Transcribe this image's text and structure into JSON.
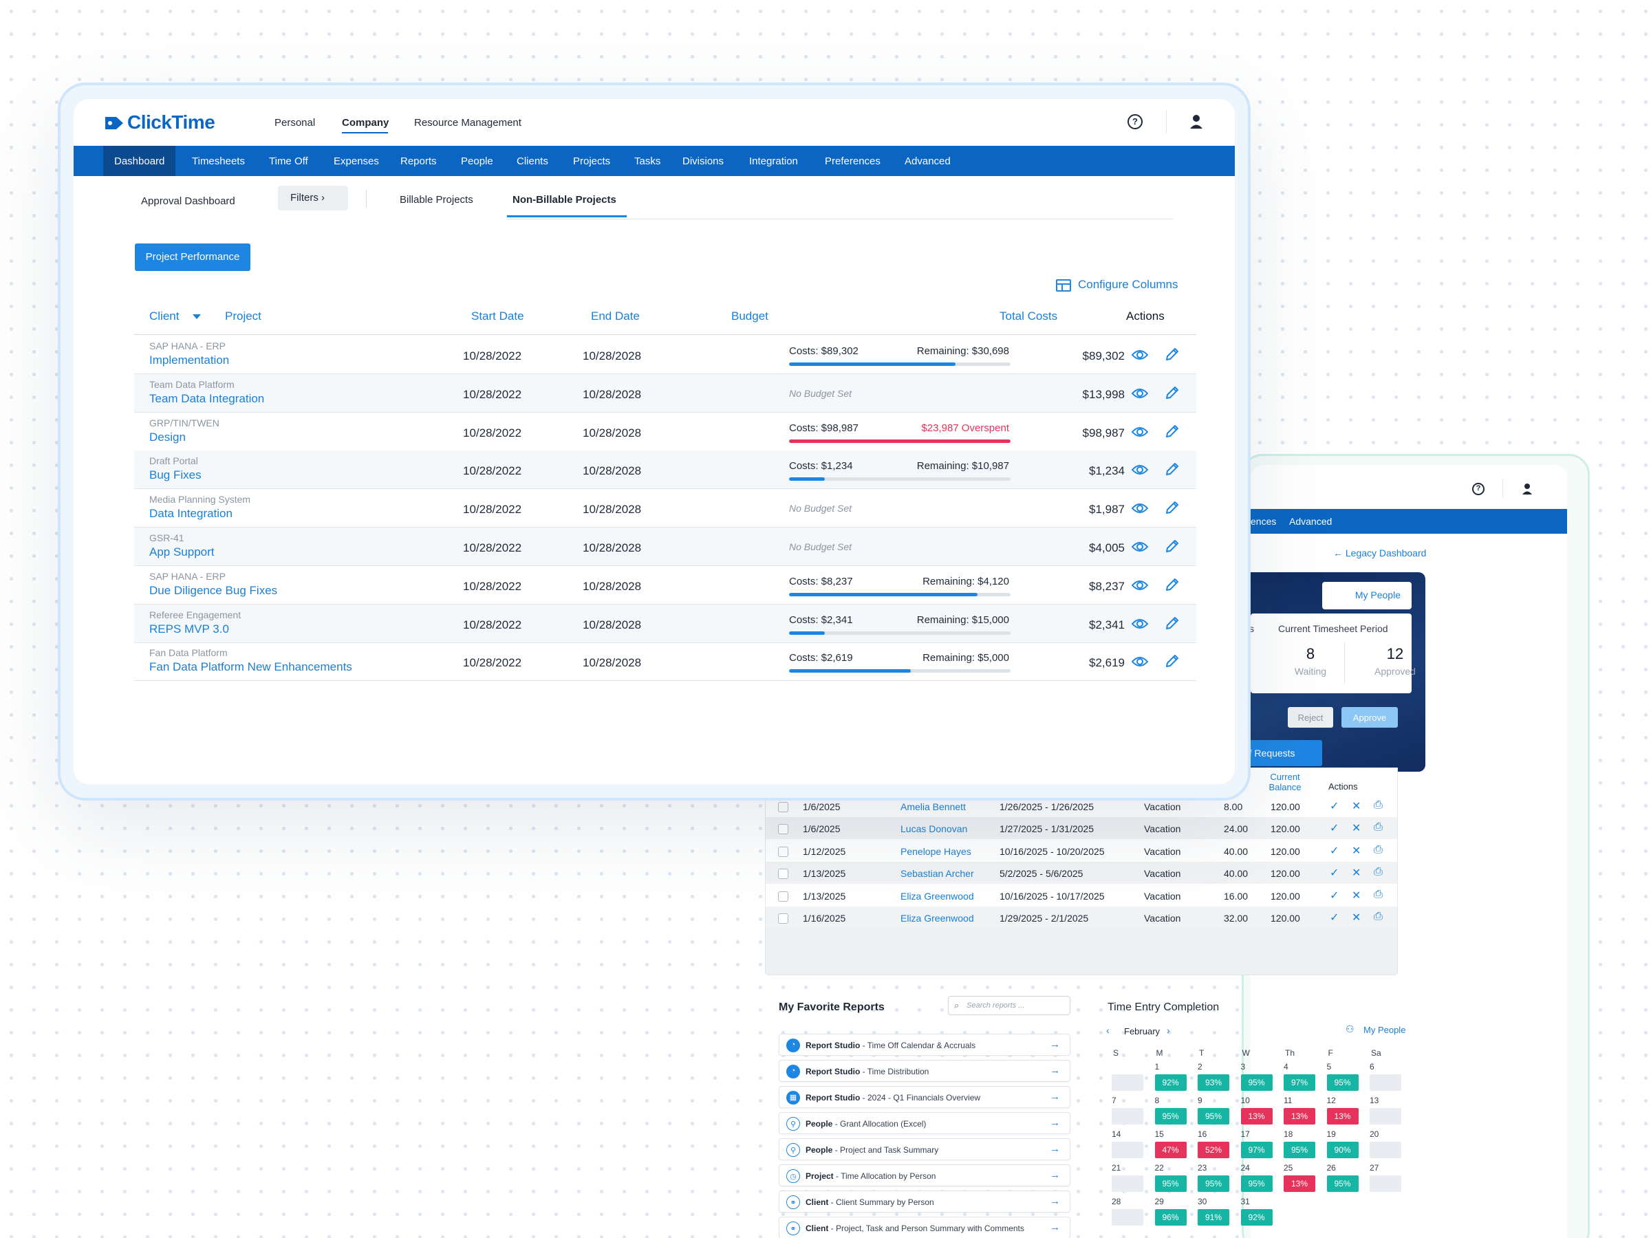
{
  "app": {
    "logo_text": "ClickTime",
    "top_nav": [
      "Personal",
      "Company",
      "Resource Management"
    ],
    "main_nav": [
      "Dashboard",
      "Timesheets",
      "Time Off",
      "Expenses",
      "Reports",
      "People",
      "Clients",
      "Projects",
      "Tasks",
      "Divisions",
      "Integration",
      "Preferences",
      "Advanced"
    ]
  },
  "subnav": {
    "approval": "Approval Dashboard",
    "filters": "Filters",
    "tab_billable": "Billable Projects",
    "tab_nonbillable": "Non-Billable Projects"
  },
  "actions": {
    "project_performance": "Project Performance",
    "configure_columns": "Configure Columns"
  },
  "table": {
    "headers": {
      "client": "Client",
      "project": "Project",
      "start_date": "Start Date",
      "end_date": "End Date",
      "budget": "Budget",
      "total_costs": "Total Costs",
      "actions": "Actions"
    },
    "rows": [
      {
        "client": "SAP HANA - ERP",
        "project": "Implementation",
        "start": "10/28/2022",
        "end": "10/28/2028",
        "costs": "Costs: $89,302",
        "remaining": "Remaining: $30,698",
        "progress": 0.75,
        "over": false,
        "total": "$89,302"
      },
      {
        "client": "Team Data Platform",
        "project": "Team Data Integration",
        "start": "10/28/2022",
        "end": "10/28/2028",
        "no_budget": "No Budget Set",
        "total": "$13,998"
      },
      {
        "client": "GRP/TIN/TWEN",
        "project": "Design",
        "start": "10/28/2022",
        "end": "10/28/2028",
        "costs": "Costs: $98,987",
        "remaining": "$23,987 Overspent",
        "progress": 1.0,
        "over": true,
        "total": "$98,987"
      },
      {
        "client": "Draft Portal",
        "project": "Bug Fixes",
        "start": "10/28/2022",
        "end": "10/28/2028",
        "costs": "Costs: $1,234",
        "remaining": "Remaining: $10,987",
        "progress": 0.16,
        "over": false,
        "total": "$1,234"
      },
      {
        "client": "Media Planning System",
        "project": "Data Integration",
        "start": "10/28/2022",
        "end": "10/28/2028",
        "no_budget": "No Budget Set",
        "total": "$1,987"
      },
      {
        "client": "GSR-41",
        "project": "App Support",
        "start": "10/28/2022",
        "end": "10/28/2028",
        "no_budget": "No Budget Set",
        "total": "$4,005"
      },
      {
        "client": "SAP HANA - ERP",
        "project": "Due Diligence Bug Fixes",
        "start": "10/28/2022",
        "end": "10/28/2028",
        "costs": "Costs: $8,237",
        "remaining": "Remaining: $4,120",
        "progress": 0.85,
        "over": false,
        "total": "$8,237"
      },
      {
        "client": "Referee Engagement",
        "project": "REPS MVP 3.0",
        "start": "10/28/2022",
        "end": "10/28/2028",
        "costs": "Costs: $2,341",
        "remaining": "Remaining: $15,000",
        "progress": 0.16,
        "over": false,
        "total": "$2,341"
      },
      {
        "client": "Fan Data Platform",
        "project": "Fan Data Platform New Enhancements",
        "start": "10/28/2022",
        "end": "10/28/2028",
        "costs": "Costs: $2,619",
        "remaining": "Remaining: $5,000",
        "progress": 0.55,
        "over": false,
        "total": "$2,619"
      }
    ]
  },
  "back_panel": {
    "nav_fragment": "ences",
    "nav_advanced": "Advanced",
    "legacy_link": "Legacy Dashboard",
    "my_people": "My People",
    "period_title": "Current Timesheet Period",
    "period_left_fragment": "s",
    "waiting_count": "8",
    "waiting_label": "Waiting",
    "approved_count": "12",
    "approved_label": "Approved",
    "reject": "Reject",
    "approve": "Approve",
    "requests_tab": "ff Requests",
    "table_head_balance": "Current Balance",
    "table_head_actions": "Actions",
    "time_off_rows": [
      {
        "date": "1/6/2025",
        "name": "Amelia Bennett",
        "range": "1/26/2025 - 1/26/2025",
        "type": "Vacation",
        "hours": "8.00",
        "balance": "120.00"
      },
      {
        "date": "1/6/2025",
        "name": "Lucas Donovan",
        "range": "1/27/2025 - 1/31/2025",
        "type": "Vacation",
        "hours": "24.00",
        "balance": "120.00"
      },
      {
        "date": "1/12/2025",
        "name": "Penelope Hayes",
        "range": "10/16/2025 - 10/20/2025",
        "type": "Vacation",
        "hours": "40.00",
        "balance": "120.00"
      },
      {
        "date": "1/13/2025",
        "name": "Sebastian Archer",
        "range": "5/2/2025 - 5/6/2025",
        "type": "Vacation",
        "hours": "40.00",
        "balance": "120.00"
      },
      {
        "date": "1/13/2025",
        "name": "Eliza Greenwood",
        "range": "10/16/2025 - 10/17/2025",
        "type": "Vacation",
        "hours": "16.00",
        "balance": "120.00"
      },
      {
        "date": "1/16/2025",
        "name": "Eliza Greenwood",
        "range": "1/29/2025 - 2/1/2025",
        "type": "Vacation",
        "hours": "32.00",
        "balance": "120.00"
      }
    ],
    "reports_title": "My Favorite Reports",
    "reports_search_placeholder": "Search reports ...",
    "reports": [
      {
        "source": "Report Studio",
        "name": " - Time Off Calendar & Accruals",
        "icon": "report-studio"
      },
      {
        "source": "Report Studio",
        "name": " - Time Distribution",
        "icon": "report-studio"
      },
      {
        "source": "Report Studio",
        "name": " - 2024 - Q1 Financials Overview",
        "icon": "spreadsheet"
      },
      {
        "source": "People",
        "name": " - Grant Allocation (Excel)",
        "icon": "person"
      },
      {
        "source": "People",
        "name": " - Project and Task Summary",
        "icon": "person"
      },
      {
        "source": "Project",
        "name": " - Time Allocation by Person",
        "icon": "project"
      },
      {
        "source": "Client",
        "name": " - Client Summary by Person",
        "icon": "handshake"
      },
      {
        "source": "Client",
        "name": " - Project, Task and Person Summary with Comments",
        "icon": "handshake"
      }
    ],
    "calendar": {
      "title": "Time Entry Completion",
      "month": "February",
      "my_people": "My People",
      "days_of_week": [
        "S",
        "M",
        "T",
        "W",
        "Th",
        "F",
        "Sa"
      ],
      "weeks": [
        [
          {
            "d": "",
            "p": null
          },
          {
            "d": "1",
            "p": "92%"
          },
          {
            "d": "2",
            "p": "93%"
          },
          {
            "d": "3",
            "p": "95%"
          },
          {
            "d": "4",
            "p": "97%"
          },
          {
            "d": "5",
            "p": "95%"
          },
          {
            "d": "6",
            "p": null
          }
        ],
        [
          {
            "d": "7",
            "p": null
          },
          {
            "d": "8",
            "p": "95%"
          },
          {
            "d": "9",
            "p": "95%"
          },
          {
            "d": "10",
            "p": "13%"
          },
          {
            "d": "11",
            "p": "13%"
          },
          {
            "d": "12",
            "p": "13%"
          },
          {
            "d": "13",
            "p": null
          }
        ],
        [
          {
            "d": "14",
            "p": null
          },
          {
            "d": "15",
            "p": "47%"
          },
          {
            "d": "16",
            "p": "52%"
          },
          {
            "d": "17",
            "p": "97%"
          },
          {
            "d": "18",
            "p": "95%"
          },
          {
            "d": "19",
            "p": "90%"
          },
          {
            "d": "20",
            "p": null
          }
        ],
        [
          {
            "d": "21",
            "p": null
          },
          {
            "d": "22",
            "p": "95%"
          },
          {
            "d": "23",
            "p": "95%"
          },
          {
            "d": "24",
            "p": "95%"
          },
          {
            "d": "25",
            "p": "13%"
          },
          {
            "d": "26",
            "p": "95%"
          },
          {
            "d": "27",
            "p": null
          }
        ],
        [
          {
            "d": "28",
            "p": null
          },
          {
            "d": "29",
            "p": "96%"
          },
          {
            "d": "30",
            "p": "91%"
          },
          {
            "d": "31",
            "p": "92%"
          },
          {
            "d": "",
            "p": "none"
          },
          {
            "d": "",
            "p": "none"
          },
          {
            "d": "",
            "p": "none"
          }
        ]
      ]
    }
  },
  "colors": {
    "brand_blue": "#0a66c2",
    "accent_blue": "#1d86e3",
    "danger": "#e6335b",
    "success": "#16b5a4"
  }
}
